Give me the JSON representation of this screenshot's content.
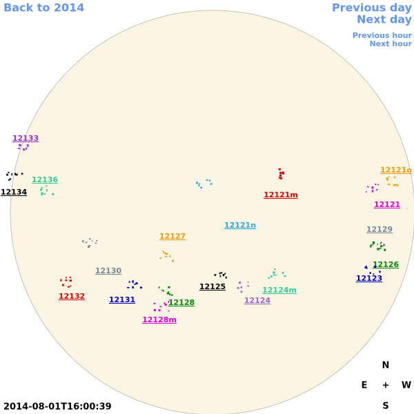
{
  "navigation": {
    "back": "Back to 2014",
    "previous_day": "Previous day",
    "next_day": "Next day",
    "previous_hour": "Previous hour",
    "next_hour": "Next hour"
  },
  "regions": [
    {
      "label": "12133",
      "color": "#9932cc"
    },
    {
      "label": "12134",
      "color": "#000000"
    },
    {
      "label": "12136",
      "color": "#33cc99"
    },
    {
      "label": "12121o",
      "color": "#ee9a00"
    },
    {
      "label": "12121",
      "color": "#dd00dd"
    },
    {
      "label": "12121m",
      "color": "#dd0000"
    },
    {
      "label": "12121n",
      "color": "#22aadd"
    },
    {
      "label": "12127",
      "color": "#ee9a00"
    },
    {
      "label": "12129",
      "color": "#778899"
    },
    {
      "label": "12130",
      "color": "#778899"
    },
    {
      "label": "12126",
      "color": "#008800"
    },
    {
      "label": "12123",
      "color": "#0000cc"
    },
    {
      "label": "12125",
      "color": "#000000"
    },
    {
      "label": "12124m",
      "color": "#33cc99"
    },
    {
      "label": "12124",
      "color": "#9966cc"
    },
    {
      "label": "12132",
      "color": "#dd0000"
    },
    {
      "label": "12131",
      "color": "#0000cc"
    },
    {
      "label": "12128",
      "color": "#008800"
    },
    {
      "label": "12128m",
      "color": "#dd00dd"
    }
  ],
  "timestamp": "2014-08-01T16:00:39",
  "compass": {
    "north": "N",
    "east": "E",
    "center": "+",
    "west": "W",
    "south": "S"
  }
}
